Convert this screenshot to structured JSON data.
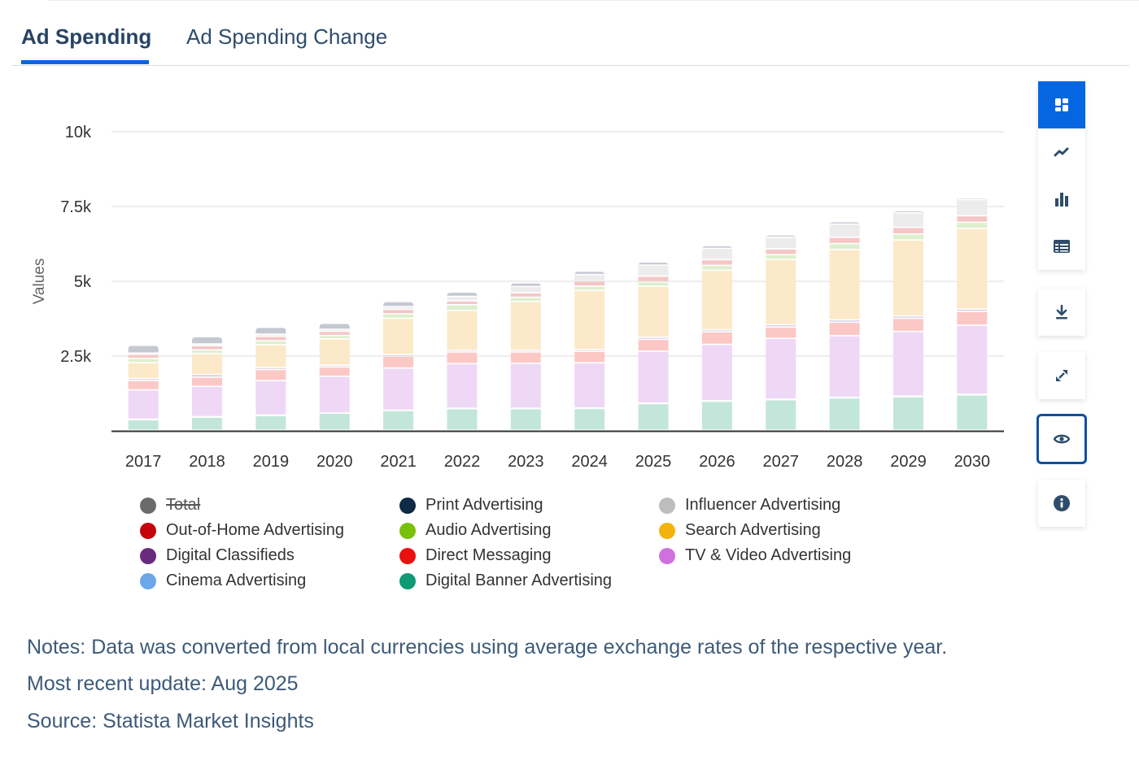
{
  "tabs": [
    {
      "label": "Ad Spending",
      "active": true
    },
    {
      "label": "Ad Spending Change",
      "active": false
    }
  ],
  "toolbar": {
    "view_buttons": [
      {
        "icon": "grid-icon",
        "active": true
      },
      {
        "icon": "line-chart-icon",
        "active": false
      },
      {
        "icon": "bar-chart-icon",
        "active": false
      },
      {
        "icon": "table-icon",
        "active": false
      }
    ],
    "download_icon": "download-icon",
    "expand_icon": "expand-icon",
    "visibility_icon": "eye-icon",
    "info_icon": "info-icon"
  },
  "chart_data": {
    "type": "bar",
    "stacked": true,
    "title": "",
    "xlabel": "",
    "ylabel": "Values",
    "ylim": [
      0,
      10000
    ],
    "yticks": [
      {
        "value": 2500,
        "label": "2.5k"
      },
      {
        "value": 5000,
        "label": "5k"
      },
      {
        "value": 7500,
        "label": "7.5k"
      },
      {
        "value": 10000,
        "label": "10k"
      }
    ],
    "grid": true,
    "legend_position": "bottom",
    "categories": [
      "2017",
      "2018",
      "2019",
      "2020",
      "2021",
      "2022",
      "2023",
      "2024",
      "2025",
      "2026",
      "2027",
      "2028",
      "2029",
      "2030"
    ],
    "series": [
      {
        "name": "Digital Banner Advertising",
        "color": "#c3e6da",
        "legend_color": "#0e9a74",
        "values": [
          350,
          440,
          490,
          570,
          660,
          720,
          720,
          730,
          890,
          970,
          1020,
          1080,
          1120,
          1180
        ]
      },
      {
        "name": "Cinema Advertising",
        "color": "#d6e6f7",
        "legend_color": "#6aa7e8",
        "values": [
          20,
          15,
          20,
          5,
          10,
          15,
          15,
          15,
          20,
          20,
          20,
          20,
          20,
          20
        ]
      },
      {
        "name": "TV & Video Advertising",
        "color": "#efd8f6",
        "legend_color": "#d06fe0",
        "values": [
          980,
          1010,
          1150,
          1230,
          1410,
          1490,
          1500,
          1510,
          1730,
          1880,
          2030,
          2060,
          2160,
          2310
        ]
      },
      {
        "name": "Direct Messaging",
        "color": "#fbc8c6",
        "legend_color": "#e9120f",
        "values": [
          310,
          310,
          370,
          310,
          390,
          390,
          380,
          380,
          400,
          420,
          380,
          450,
          440,
          460
        ]
      },
      {
        "name": "Digital Classifieds",
        "color": "#d9cce2",
        "legend_color": "#6a2a7e",
        "values": [
          70,
          90,
          70,
          60,
          60,
          60,
          60,
          60,
          70,
          70,
          80,
          80,
          80,
          80
        ]
      },
      {
        "name": "Search Advertising",
        "color": "#fbe9c9",
        "legend_color": "#f3b20c",
        "values": [
          530,
          700,
          760,
          880,
          1210,
          1330,
          1630,
          1980,
          1700,
          1990,
          2180,
          2350,
          2540,
          2700
        ]
      },
      {
        "name": "Audio Advertising",
        "color": "#ddefcd",
        "legend_color": "#78c00b",
        "values": [
          140,
          120,
          130,
          110,
          150,
          190,
          140,
          140,
          150,
          160,
          160,
          200,
          200,
          200
        ]
      },
      {
        "name": "Out-of-Home Advertising",
        "color": "#f5c6c6",
        "legend_color": "#c4040a",
        "values": [
          140,
          140,
          150,
          140,
          150,
          130,
          150,
          170,
          190,
          190,
          190,
          210,
          220,
          220
        ]
      },
      {
        "name": "Influencer Advertising",
        "color": "#ececec",
        "legend_color": "#bdbdbd",
        "values": [
          40,
          60,
          70,
          70,
          90,
          150,
          210,
          220,
          370,
          380,
          390,
          440,
          490,
          540
        ]
      },
      {
        "name": "Print Advertising",
        "color": "#c4c8d0",
        "legend_color": "#0e2a44",
        "values": [
          260,
          240,
          230,
          200,
          170,
          140,
          120,
          110,
          100,
          90,
          80,
          80,
          70,
          60
        ]
      }
    ],
    "totals_hidden": true
  },
  "legend": [
    {
      "label": "Total",
      "color": "#6b6b6b",
      "hidden": true
    },
    {
      "label": "Out-of-Home Advertising",
      "color": "#c4040a",
      "hidden": false
    },
    {
      "label": "Digital Classifieds",
      "color": "#6a2a7e",
      "hidden": false
    },
    {
      "label": "Cinema Advertising",
      "color": "#6aa7e8",
      "hidden": false
    },
    {
      "label": "Print Advertising",
      "color": "#0e2a44",
      "hidden": false
    },
    {
      "label": "Audio Advertising",
      "color": "#78c00b",
      "hidden": false
    },
    {
      "label": "Direct Messaging",
      "color": "#e9120f",
      "hidden": false
    },
    {
      "label": "Digital Banner Advertising",
      "color": "#0e9a74",
      "hidden": false
    },
    {
      "label": "Influencer Advertising",
      "color": "#bdbdbd",
      "hidden": false
    },
    {
      "label": "Search Advertising",
      "color": "#f3b20c",
      "hidden": false
    },
    {
      "label": "TV & Video Advertising",
      "color": "#d06fe0",
      "hidden": false
    }
  ],
  "notes": {
    "note": "Notes: Data was converted from local currencies using average exchange rates of the respective year.",
    "update": "Most recent update: Aug 2025",
    "source": "Source: Statista Market Insights"
  }
}
